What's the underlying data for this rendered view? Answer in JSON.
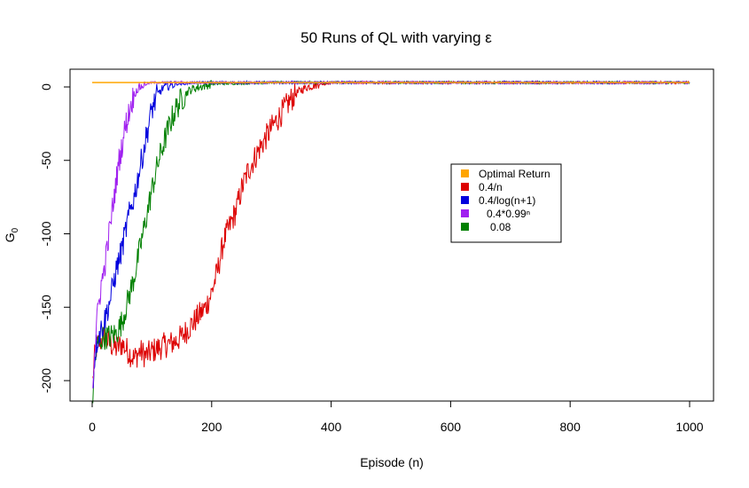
{
  "chart_data": {
    "type": "line",
    "title": "50 Runs of QL with varying ε",
    "xlabel": "Episode (n)",
    "ylabel": "G",
    "ylabel_subscript": "0",
    "xlim": [
      0,
      1000
    ],
    "ylim": [
      -215,
      5
    ],
    "x_ticks": [
      0,
      200,
      400,
      600,
      800,
      1000
    ],
    "y_ticks": [
      0,
      -50,
      -100,
      -150,
      -200
    ],
    "grid": false,
    "legend_position": "center-right",
    "series": [
      {
        "name": "Optimal Return",
        "color": "#FFA500",
        "x": [
          0,
          1000
        ],
        "y": [
          3,
          3
        ]
      },
      {
        "name": "0.4/n",
        "color": "#DD0000",
        "x": [
          1,
          5,
          10,
          20,
          30,
          40,
          50,
          60,
          70,
          80,
          90,
          100,
          110,
          120,
          130,
          140,
          150,
          160,
          170,
          180,
          190,
          200,
          210,
          220,
          230,
          240,
          250,
          260,
          270,
          280,
          290,
          300,
          310,
          320,
          330,
          340,
          350,
          360,
          370,
          380,
          390,
          400,
          420,
          450,
          500,
          600,
          700,
          800,
          900,
          1000
        ],
        "y": [
          -200,
          -180,
          -175,
          -170,
          -175,
          -178,
          -175,
          -180,
          -185,
          -180,
          -183,
          -180,
          -178,
          -176,
          -175,
          -173,
          -170,
          -165,
          -160,
          -155,
          -150,
          -140,
          -125,
          -105,
          -95,
          -85,
          -70,
          -58,
          -50,
          -42,
          -35,
          -28,
          -22,
          -16,
          -10,
          -5,
          -2,
          0,
          1,
          2,
          2,
          3,
          3,
          3,
          3,
          3,
          3,
          3,
          3,
          3
        ]
      },
      {
        "name": "0.4/log(n+1)",
        "color": "#0000DD",
        "x": [
          1,
          5,
          10,
          20,
          30,
          40,
          50,
          60,
          70,
          80,
          90,
          100,
          110,
          120,
          130,
          140,
          150,
          170,
          200,
          300,
          400,
          500,
          600,
          700,
          800,
          900,
          1000
        ],
        "y": [
          -205,
          -180,
          -170,
          -160,
          -145,
          -125,
          -110,
          -90,
          -75,
          -55,
          -35,
          -15,
          -5,
          0,
          1,
          2,
          2,
          3,
          3,
          3,
          3,
          3,
          3,
          3,
          3,
          3,
          3
        ]
      },
      {
        "name": "0.4*0.99ⁿ",
        "color": "#A020F0",
        "x": [
          1,
          5,
          10,
          15,
          20,
          25,
          30,
          35,
          40,
          45,
          50,
          55,
          60,
          65,
          70,
          75,
          80,
          85,
          90,
          100,
          120,
          150,
          200,
          1000
        ],
        "y": [
          -200,
          -175,
          -150,
          -135,
          -125,
          -110,
          -95,
          -80,
          -65,
          -50,
          -40,
          -28,
          -20,
          -12,
          -5,
          -2,
          0,
          1,
          2,
          3,
          3,
          3,
          3,
          3
        ]
      },
      {
        "name": "0.08",
        "color": "#008000",
        "x": [
          1,
          5,
          10,
          15,
          20,
          30,
          40,
          50,
          60,
          70,
          80,
          90,
          100,
          110,
          120,
          130,
          140,
          150,
          160,
          170,
          180,
          190,
          200,
          300,
          400,
          500,
          600,
          700,
          800,
          900,
          1000
        ],
        "y": [
          -210,
          -185,
          -175,
          -172,
          -170,
          -170,
          -168,
          -160,
          -145,
          -130,
          -110,
          -90,
          -70,
          -52,
          -38,
          -25,
          -15,
          -8,
          -3,
          -1,
          0,
          1,
          2,
          3,
          3,
          3,
          3,
          3,
          3,
          3,
          3
        ]
      }
    ]
  }
}
